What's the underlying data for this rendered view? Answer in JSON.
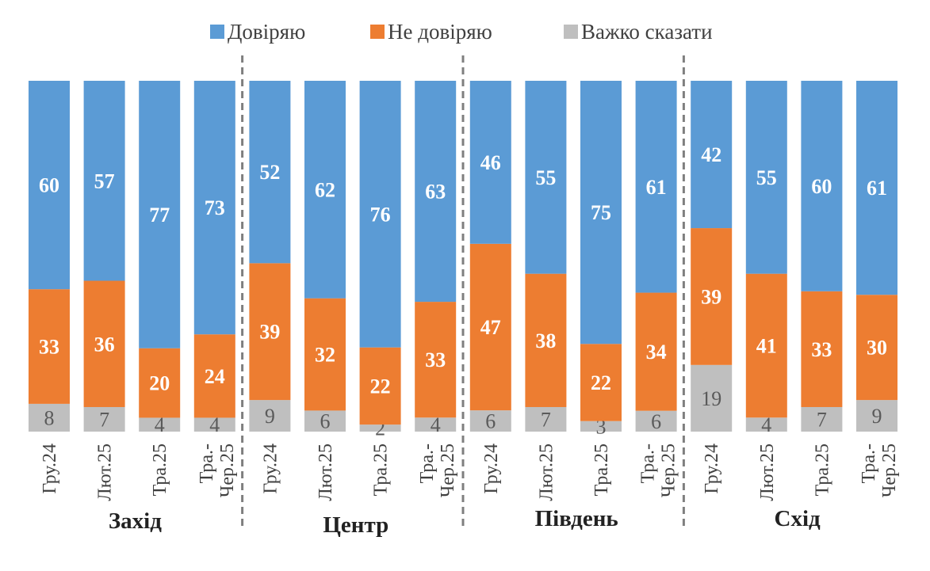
{
  "colors": {
    "trust": "#5b9bd5",
    "distrust": "#ed7d31",
    "hard": "#bfbfbf",
    "separator": "#7f7f7f"
  },
  "legend": [
    {
      "name": "Довіряю",
      "color": "#5b9bd5"
    },
    {
      "name": "Не довіряю",
      "color": "#ed7d31"
    },
    {
      "name": "Важко сказати",
      "color": "#bfbfbf"
    }
  ],
  "chart_data": {
    "type": "bar",
    "stacked": true,
    "ylim": [
      0,
      100
    ],
    "legend_position": "top",
    "grid": false,
    "categories": [
      "Гру.24",
      "Лют.25",
      "Тра.25",
      "Тра.-\nЧер.25",
      "Гру.24",
      "Лют.25",
      "Тра.25",
      "Тра.-\nЧер.25",
      "Гру.24",
      "Лют.25",
      "Тра.25",
      "Тра.-\nЧер.25",
      "Гру.24",
      "Лют.25",
      "Тра.25",
      "Тра.-\nЧер.25"
    ],
    "groups": [
      "Захід",
      "Центр",
      "Південь",
      "Схід"
    ],
    "series": [
      {
        "name": "Важко сказати",
        "values": [
          8,
          7,
          4,
          4,
          9,
          6,
          2,
          4,
          6,
          7,
          3,
          6,
          19,
          4,
          7,
          9
        ]
      },
      {
        "name": "Не довіряю",
        "values": [
          33,
          36,
          20,
          24,
          39,
          32,
          22,
          33,
          47,
          38,
          22,
          34,
          39,
          41,
          33,
          30
        ]
      },
      {
        "name": "Довіряю",
        "values": [
          60,
          57,
          77,
          73,
          52,
          62,
          76,
          63,
          46,
          55,
          75,
          61,
          42,
          55,
          60,
          61
        ]
      }
    ]
  }
}
